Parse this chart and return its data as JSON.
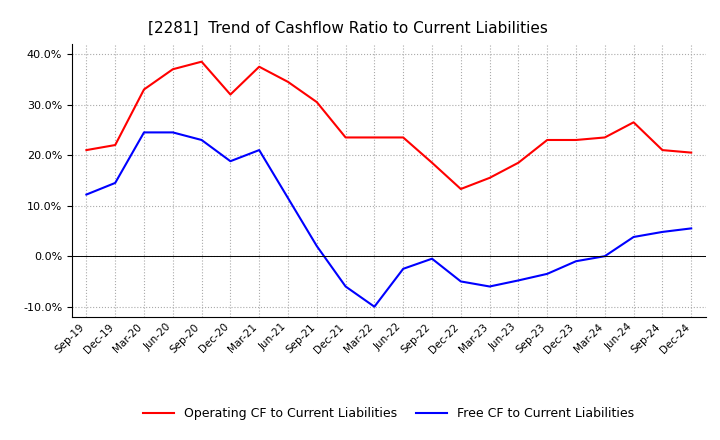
{
  "title": "[2281]  Trend of Cashflow Ratio to Current Liabilities",
  "title_fontsize": 11,
  "x_labels": [
    "Sep-19",
    "Dec-19",
    "Mar-20",
    "Jun-20",
    "Sep-20",
    "Dec-20",
    "Mar-21",
    "Jun-21",
    "Sep-21",
    "Dec-21",
    "Mar-22",
    "Jun-22",
    "Sep-22",
    "Dec-22",
    "Mar-23",
    "Jun-23",
    "Sep-23",
    "Dec-23",
    "Mar-24",
    "Jun-24",
    "Sep-24",
    "Dec-24"
  ],
  "operating_cf": [
    0.21,
    0.22,
    0.33,
    0.37,
    0.385,
    0.32,
    0.375,
    0.345,
    0.305,
    0.235,
    0.235,
    0.235,
    0.185,
    0.133,
    0.155,
    0.185,
    0.23,
    0.23,
    0.235,
    0.265,
    0.21,
    0.205
  ],
  "free_cf": [
    0.122,
    0.145,
    0.245,
    0.245,
    0.23,
    0.188,
    0.21,
    0.115,
    0.02,
    -0.06,
    -0.1,
    -0.025,
    -0.005,
    -0.05,
    -0.06,
    -0.048,
    -0.035,
    -0.01,
    0.0,
    0.038,
    0.048,
    0.055
  ],
  "operating_color": "#FF0000",
  "free_color": "#0000FF",
  "ylim": [
    -0.12,
    0.42
  ],
  "yticks": [
    -0.1,
    0.0,
    0.1,
    0.2,
    0.3,
    0.4
  ],
  "background_color": "#ffffff",
  "grid_color": "#aaaaaa",
  "legend_labels": [
    "Operating CF to Current Liabilities",
    "Free CF to Current Liabilities"
  ]
}
